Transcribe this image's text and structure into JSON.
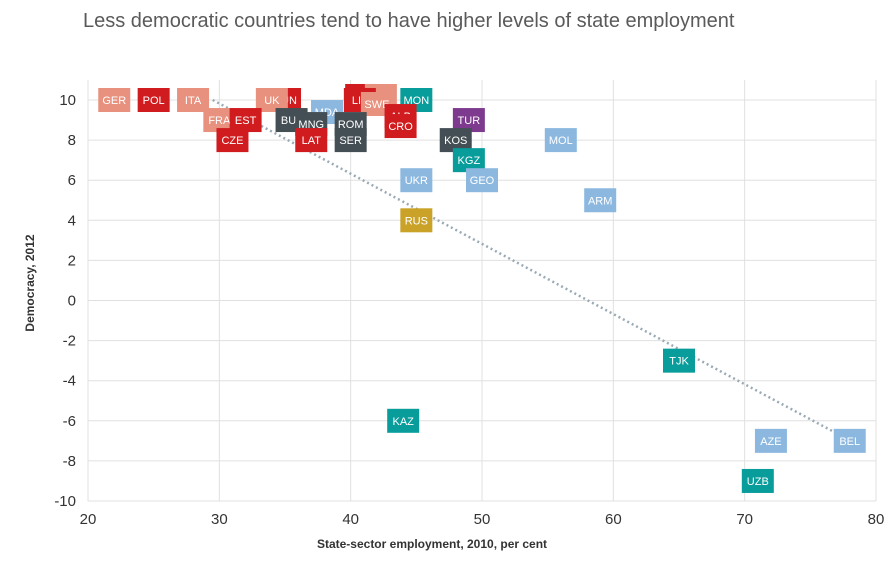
{
  "chart_data": {
    "type": "scatter",
    "title": "Less democratic countries tend to have higher levels of state employment",
    "xlabel": "State-sector employment, 2010, per cent",
    "ylabel": "Democracy, 2012",
    "xlim": [
      20,
      80
    ],
    "ylim": [
      -10,
      10
    ],
    "x_ticks": [
      20,
      30,
      40,
      50,
      60,
      70,
      80
    ],
    "y_ticks": [
      -10,
      -8,
      -6,
      -4,
      -2,
      0,
      2,
      4,
      6,
      8,
      10
    ],
    "grid": true,
    "trendline": {
      "style": "dotted",
      "x": [
        29.5,
        77.5
      ],
      "y": [
        10,
        -6.8
      ]
    },
    "colors": {
      "red": "#d01c1f",
      "salmon": "#e8917e",
      "lightblue": "#8cb8e0",
      "darkgray": "#444e55",
      "teal": "#089c9a",
      "purple": "#7d3a8e",
      "gold": "#c9a227",
      "trend": "#9aaab4",
      "grid": "#e0e0e0"
    },
    "points": [
      {
        "label": "GER",
        "x": 22,
        "y": 10,
        "color": "salmon"
      },
      {
        "label": "POL",
        "x": 25,
        "y": 10,
        "color": "red"
      },
      {
        "label": "ITA",
        "x": 28,
        "y": 10,
        "color": "salmon"
      },
      {
        "label": "HUN",
        "x": 35,
        "y": 10,
        "color": "red"
      },
      {
        "label": "UK",
        "x": 34,
        "y": 10,
        "color": "salmon"
      },
      {
        "label": "SVK",
        "x": 40.8,
        "y": 10.2,
        "color": "red"
      },
      {
        "label": "SLO",
        "x": 42.3,
        "y": 10.2,
        "color": "salmon"
      },
      {
        "label": "LIT",
        "x": 40.7,
        "y": 10,
        "color": "red"
      },
      {
        "label": "SWE",
        "x": 42,
        "y": 9.8,
        "color": "salmon"
      },
      {
        "label": "MON",
        "x": 45,
        "y": 10,
        "color": "teal"
      },
      {
        "label": "FRA",
        "x": 30,
        "y": 9,
        "color": "salmon"
      },
      {
        "label": "EST",
        "x": 32,
        "y": 9,
        "color": "red"
      },
      {
        "label": "MDA",
        "x": 38.2,
        "y": 9.4,
        "color": "lightblue"
      },
      {
        "label": "BUL",
        "x": 35.5,
        "y": 9,
        "color": "darkgray"
      },
      {
        "label": "MNG",
        "x": 37,
        "y": 8.8,
        "color": "darkgray"
      },
      {
        "label": "ROM",
        "x": 40,
        "y": 8.8,
        "color": "darkgray"
      },
      {
        "label": "ALB",
        "x": 43.8,
        "y": 9.2,
        "color": "red"
      },
      {
        "label": "CRO",
        "x": 43.8,
        "y": 8.7,
        "color": "red"
      },
      {
        "label": "TUR",
        "x": 49,
        "y": 9,
        "color": "purple"
      },
      {
        "label": "CZE",
        "x": 31,
        "y": 8,
        "color": "red"
      },
      {
        "label": "LAT",
        "x": 37,
        "y": 8,
        "color": "red"
      },
      {
        "label": "SER",
        "x": 40,
        "y": 8,
        "color": "darkgray"
      },
      {
        "label": "KOS",
        "x": 48,
        "y": 8,
        "color": "darkgray"
      },
      {
        "label": "MOL",
        "x": 56,
        "y": 8,
        "color": "lightblue"
      },
      {
        "label": "KGZ",
        "x": 49,
        "y": 7,
        "color": "teal"
      },
      {
        "label": "UKR",
        "x": 45,
        "y": 6,
        "color": "lightblue"
      },
      {
        "label": "GEO",
        "x": 50,
        "y": 6,
        "color": "lightblue"
      },
      {
        "label": "ARM",
        "x": 59,
        "y": 5,
        "color": "lightblue"
      },
      {
        "label": "RUS",
        "x": 45,
        "y": 4,
        "color": "gold"
      },
      {
        "label": "TJK",
        "x": 65,
        "y": -3,
        "color": "teal"
      },
      {
        "label": "KAZ",
        "x": 44,
        "y": -6,
        "color": "teal"
      },
      {
        "label": "AZE",
        "x": 72,
        "y": -7,
        "color": "lightblue"
      },
      {
        "label": "BEL",
        "x": 78,
        "y": -7,
        "color": "lightblue"
      },
      {
        "label": "UZB",
        "x": 71,
        "y": -9,
        "color": "teal"
      }
    ]
  }
}
